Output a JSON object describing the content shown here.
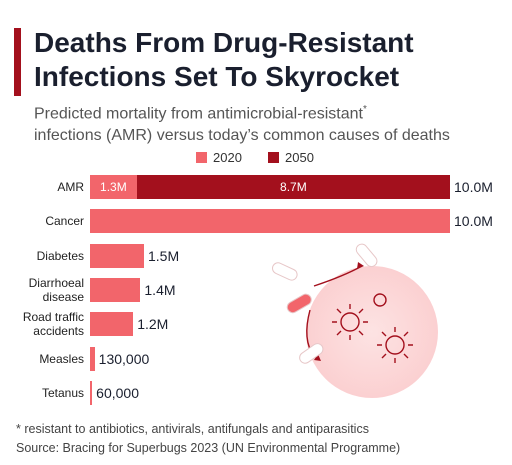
{
  "chart_data": {
    "type": "stacked-bar-horizontal",
    "title": [
      "Deaths From Drug-Resistant",
      "Infections Set To Skyrocket"
    ],
    "subtitle": [
      "Predicted mortality from antimicrobial-resistant",
      "*",
      "infections (AMR) versus today’s common causes of deaths"
    ],
    "categories": [
      "AMR",
      "Cancer",
      "Diabetes",
      "Diarrhoeal disease",
      "Road traffic accidents",
      "Measles",
      "Tetanus"
    ],
    "series": [
      {
        "name": "2020",
        "color": "#f2656b",
        "values": [
          1300000,
          10000000,
          1500000,
          1400000,
          1200000,
          130000,
          60000
        ],
        "value_labels": [
          "1.3M",
          null,
          null,
          null,
          null,
          null,
          null
        ]
      },
      {
        "name": "2050",
        "color": "#a3101d",
        "values": [
          8700000,
          null,
          null,
          null,
          null,
          null,
          null
        ],
        "value_labels": [
          "8.7M",
          null,
          null,
          null,
          null,
          null,
          null
        ]
      }
    ],
    "totals": [
      10000000,
      10000000,
      1500000,
      1400000,
      1200000,
      130000,
      60000
    ],
    "total_labels": [
      "10.0M",
      "10.0M",
      "1.5M",
      "1.4M",
      "1.2M",
      "130,000",
      "60,000"
    ],
    "xlim": [
      0,
      10000000
    ],
    "footnote": "* resistant to antibiotics, antivirals, antifungals and antiparasitics",
    "source": "Source: Bracing for Superbugs 2023 (UN Environmental Programme)"
  }
}
